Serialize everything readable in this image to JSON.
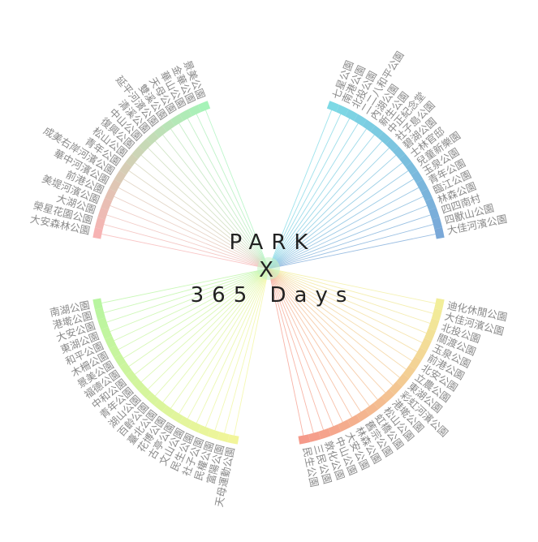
{
  "chart_data": {
    "type": "radial-bar",
    "title_lines": [
      "PARK",
      "X",
      "365 Days"
    ],
    "groups": [
      {
        "quadrant": "top-left",
        "colors": [
          "#f7b3b3",
          "#a6f3b8"
        ],
        "parks": [
          "大安森林公園",
          "榮星花園公園",
          "大湖公園",
          "美堤河濱公園",
          "前港公園",
          "華中河濱公園",
          "成美右岸河濱公園",
          "青年公園",
          "松山公園",
          "復興公園",
          "中山公園",
          "清溪公園",
          "延平河濱公園",
          "雙溪公園",
          "天母公園",
          "華山公園",
          "金華公園",
          "景美公園"
        ]
      },
      {
        "quadrant": "top-right",
        "colors": [
          "#7dd9e5",
          "#7aa8d8"
        ],
        "parks": [
          "七星公園",
          "南港公園",
          "北投公園",
          "二二八和平公園",
          "內湖公園",
          "新生公園",
          "中正紀念堂",
          "社子島公園",
          "碧湖公園",
          "士林官邸",
          "兒童新樂園",
          "玉泉公園",
          "青年公園",
          "臨江公園",
          "林森公園",
          "四四南村",
          "四獸山公園",
          "大佳河濱公園"
        ]
      },
      {
        "quadrant": "bottom-left",
        "colors": [
          "#b8f5a0",
          "#f2f59a"
        ],
        "parks": [
          "南湖公園",
          "港墘公園",
          "大安公園",
          "東湖公園",
          "和平公園",
          "木柵公園",
          "景美公園",
          "福德公園",
          "中和公園",
          "青年公園",
          "湖山公園",
          "百齡公園",
          "臺北公園",
          "花博公園",
          "古亭公園",
          "文山公園",
          "民生公園",
          "社子公園",
          "民權公園",
          "富陽公園",
          "天母運動公園"
        ]
      },
      {
        "quadrant": "bottom-right",
        "colors": [
          "#f2ee9a",
          "#f59a8a"
        ],
        "parks": [
          "迪化休閒公園",
          "大佳河濱公園",
          "北投公園",
          "關渡公園",
          "玉泉公園",
          "前港公園",
          "北安公園",
          "立農公園",
          "東湖公園",
          "彩虹河濱公園",
          "港墘公園",
          "松山公園",
          "虹橋公園",
          "舊宗公園",
          "林森公園",
          "大安公園",
          "中山公園",
          "敦化公園",
          "三民公園",
          "民生公園"
        ]
      }
    ]
  }
}
